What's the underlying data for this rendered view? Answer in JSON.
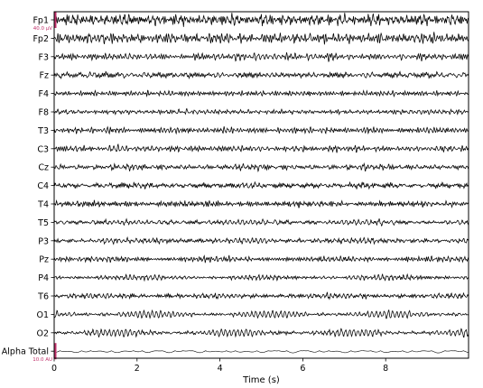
{
  "chart_data": {
    "type": "line",
    "xlabel": "Time (s)",
    "xlim": [
      0,
      10
    ],
    "x_ticks": [
      0,
      2,
      4,
      6,
      8
    ],
    "channels": [
      {
        "name": "Fp1",
        "amplitude_level": 0.95,
        "alpha_level": 0.15
      },
      {
        "name": "Fp2",
        "amplitude_level": 0.9,
        "alpha_level": 0.15
      },
      {
        "name": "F3",
        "amplitude_level": 0.45,
        "alpha_level": 0.15
      },
      {
        "name": "Fz",
        "amplitude_level": 0.45,
        "alpha_level": 0.15
      },
      {
        "name": "F4",
        "amplitude_level": 0.45,
        "alpha_level": 0.15
      },
      {
        "name": "F8",
        "amplitude_level": 0.4,
        "alpha_level": 0.15
      },
      {
        "name": "T3",
        "amplitude_level": 0.45,
        "alpha_level": 0.15
      },
      {
        "name": "C3",
        "amplitude_level": 0.45,
        "alpha_level": 0.2
      },
      {
        "name": "Cz",
        "amplitude_level": 0.5,
        "alpha_level": 0.2
      },
      {
        "name": "C4",
        "amplitude_level": 0.45,
        "alpha_level": 0.2
      },
      {
        "name": "T4",
        "amplitude_level": 0.45,
        "alpha_level": 0.2
      },
      {
        "name": "T5",
        "amplitude_level": 0.45,
        "alpha_level": 0.35
      },
      {
        "name": "P3",
        "amplitude_level": 0.45,
        "alpha_level": 0.4
      },
      {
        "name": "Pz",
        "amplitude_level": 0.4,
        "alpha_level": 0.35
      },
      {
        "name": "P4",
        "amplitude_level": 0.45,
        "alpha_level": 0.4
      },
      {
        "name": "T6",
        "amplitude_level": 0.45,
        "alpha_level": 0.35
      },
      {
        "name": "O1",
        "amplitude_level": 0.45,
        "alpha_level": 1.0
      },
      {
        "name": "O2",
        "amplitude_level": 0.45,
        "alpha_level": 1.0
      },
      {
        "name": "Alpha Total",
        "amplitude_level": 0.35,
        "alpha_level": 0.5
      }
    ],
    "scale_bars": [
      {
        "label": "40.0 µV",
        "channel": "Fp1"
      },
      {
        "label": "10.0 AU",
        "channel": "Alpha Total"
      }
    ],
    "colors": {
      "trace": "#000000",
      "scale_bar": "#c0306a",
      "axis": "#000000"
    }
  }
}
